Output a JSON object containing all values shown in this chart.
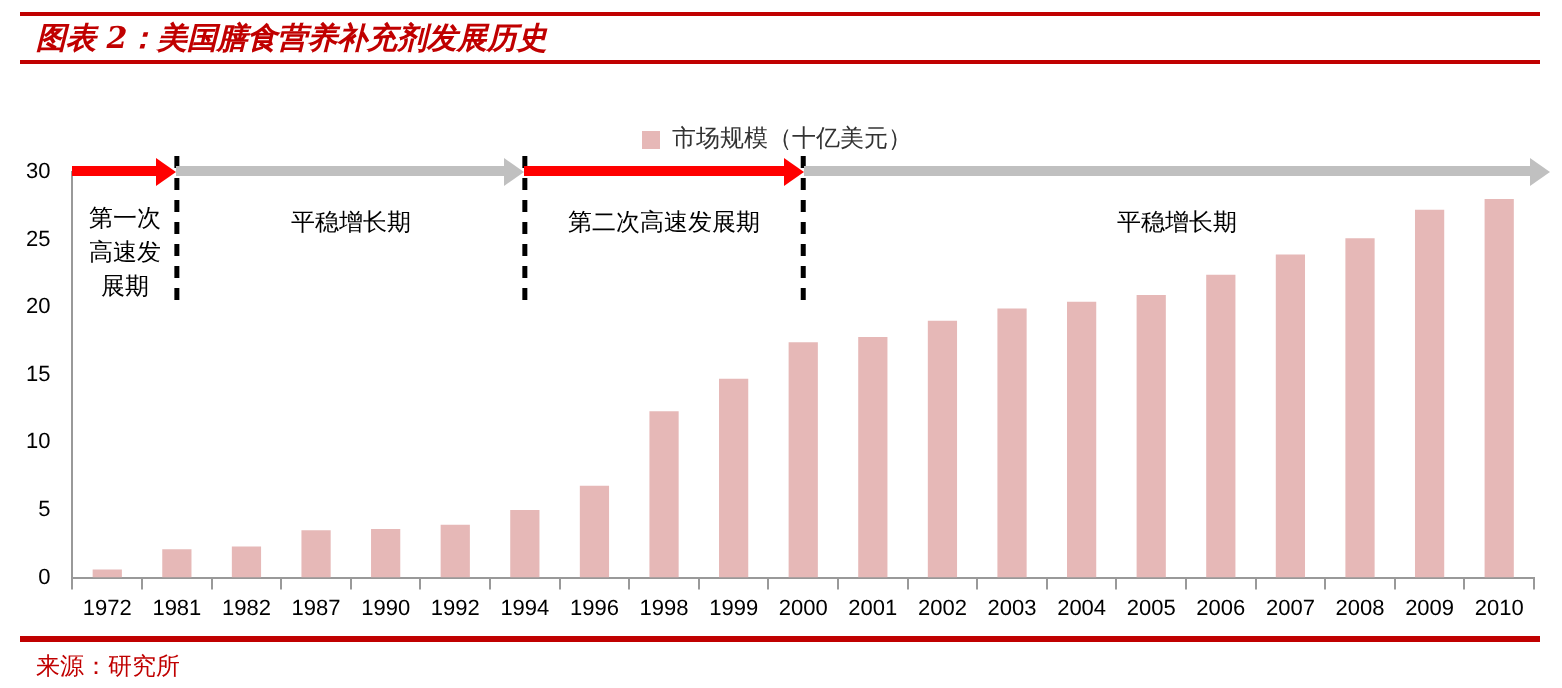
{
  "chart_data": {
    "type": "bar",
    "title": "图表 2：美国膳食营养补充剂发展历史",
    "categories": [
      "1972",
      "1981",
      "1982",
      "1987",
      "1990",
      "1992",
      "1994",
      "1996",
      "1998",
      "1999",
      "2000",
      "2001",
      "2002",
      "2003",
      "2004",
      "2005",
      "2006",
      "2007",
      "2008",
      "2009",
      "2010"
    ],
    "series": [
      {
        "name": "市场规模（十亿美元）",
        "color": "#e6b8b7",
        "values": [
          0.6,
          2.1,
          2.3,
          3.5,
          3.6,
          3.9,
          5.0,
          6.8,
          12.3,
          14.7,
          17.4,
          17.8,
          19.0,
          19.9,
          20.4,
          20.9,
          22.4,
          23.9,
          25.1,
          27.2,
          28.0
        ]
      }
    ],
    "ylim": [
      0,
      30
    ],
    "yticks": [
      0,
      5,
      10,
      15,
      20,
      25,
      30
    ],
    "legend": "top",
    "ref_lines": [
      {
        "axis": "x",
        "value": "1981",
        "color": "#000000",
        "line_style": "dashed"
      },
      {
        "axis": "x",
        "value": "1994",
        "color": "#000000",
        "line_style": "dashed"
      },
      {
        "axis": "x",
        "value": "2000",
        "color": "#000000",
        "line_style": "dashed"
      }
    ],
    "annotations": [
      "第一次高速发展期",
      "平稳增长期",
      "第二次高速发展期",
      "平稳增长期",
      "来源：研究所"
    ]
  }
}
